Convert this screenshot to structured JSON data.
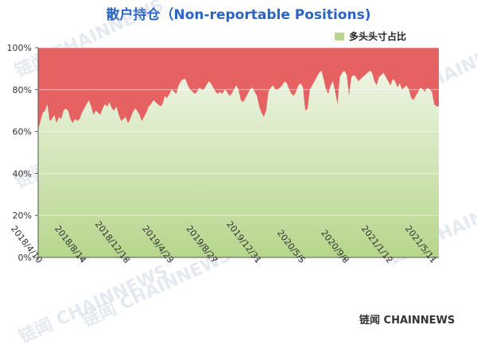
{
  "title": "散户持仓（Non-reportable Positions)",
  "legend": {
    "label": "多头头寸占比",
    "color": "#b8d890"
  },
  "watermark": "链闻 CHAINNEWS",
  "brand": "链闻 CHAINNEWS",
  "chart_data": {
    "type": "area",
    "title": "散户持仓（Non-reportable Positions)",
    "series": [
      {
        "name": "多头头寸占比",
        "color": "#b8d890",
        "values": [
          61,
          65,
          69,
          70,
          73,
          65,
          66,
          68,
          64,
          67,
          66,
          70,
          71,
          70,
          66,
          64,
          66,
          65,
          66,
          69,
          71,
          73,
          75,
          72,
          68,
          70,
          69,
          68,
          71,
          73,
          72,
          74,
          71,
          70,
          72,
          68,
          65,
          66,
          67,
          64,
          66,
          69,
          71,
          70,
          68,
          65,
          67,
          69,
          72,
          73,
          75,
          74,
          73,
          72,
          73,
          77,
          76,
          78,
          80,
          79,
          78,
          82,
          84,
          85,
          85,
          82,
          80,
          79,
          78,
          79,
          81,
          80,
          80,
          82,
          84,
          83,
          81,
          79,
          78,
          79,
          78,
          80,
          79,
          77,
          78,
          80,
          82,
          80,
          75,
          74,
          76,
          78,
          80,
          81,
          79,
          77,
          72,
          69,
          67,
          70,
          79,
          81,
          82,
          80,
          80,
          81,
          82,
          84,
          83,
          80,
          78,
          77,
          79,
          82,
          83,
          81,
          70,
          71,
          80,
          82,
          84,
          86,
          88,
          89,
          85,
          80,
          78,
          82,
          84,
          79,
          73,
          86,
          88,
          89,
          87,
          77,
          86,
          87,
          86,
          84,
          85,
          86,
          87,
          88,
          89,
          88,
          84,
          82,
          86,
          87,
          88,
          86,
          84,
          82,
          85,
          84,
          81,
          83,
          80,
          81,
          82,
          80,
          76,
          75,
          77,
          79,
          81,
          80,
          79,
          81,
          80,
          79,
          73,
          72,
          72
        ]
      }
    ],
    "x_ticks": [
      "2018/4/10",
      "2018/8/14",
      "2018/12/18",
      "2019/4/23",
      "2019/8/27",
      "2019/12/31",
      "2020/5/5",
      "2020/9/8",
      "2021/1/12",
      "2021/5/11"
    ],
    "y_ticks": [
      "0%",
      "20%",
      "40%",
      "60%",
      "80%",
      "100%"
    ],
    "ylim": [
      0,
      100
    ],
    "fill_remainder_color": "#e66262",
    "grid": true
  }
}
